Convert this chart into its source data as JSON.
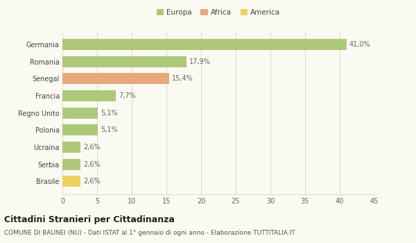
{
  "categories": [
    "Germania",
    "Romania",
    "Senegal",
    "Francia",
    "Regno Unito",
    "Polonia",
    "Ucraina",
    "Serbia",
    "Brasile"
  ],
  "values": [
    41.0,
    17.9,
    15.4,
    7.7,
    5.1,
    5.1,
    2.6,
    2.6,
    2.6
  ],
  "labels": [
    "41,0%",
    "17,9%",
    "15,4%",
    "7,7%",
    "5,1%",
    "5,1%",
    "2,6%",
    "2,6%",
    "2,6%"
  ],
  "colors": [
    "#adc878",
    "#adc878",
    "#e8a87c",
    "#adc878",
    "#adc878",
    "#adc878",
    "#adc878",
    "#adc878",
    "#f0d060"
  ],
  "legend_labels": [
    "Europa",
    "Africa",
    "America"
  ],
  "legend_colors": [
    "#adc878",
    "#e8a87c",
    "#f0d060"
  ],
  "xlim": [
    0,
    45
  ],
  "xticks": [
    0,
    5,
    10,
    15,
    20,
    25,
    30,
    35,
    40,
    45
  ],
  "title": "Cittadini Stranieri per Cittadinanza",
  "subtitle": "COMUNE DI BAUNEI (NU) - Dati ISTAT al 1° gennaio di ogni anno - Elaborazione TUTTITALIA.IT",
  "background_color": "#fafaf2",
  "grid_color": "#d8d8c8",
  "bar_height": 0.65,
  "title_fontsize": 9,
  "subtitle_fontsize": 6.5,
  "label_fontsize": 7,
  "tick_fontsize": 7,
  "legend_fontsize": 7.5
}
